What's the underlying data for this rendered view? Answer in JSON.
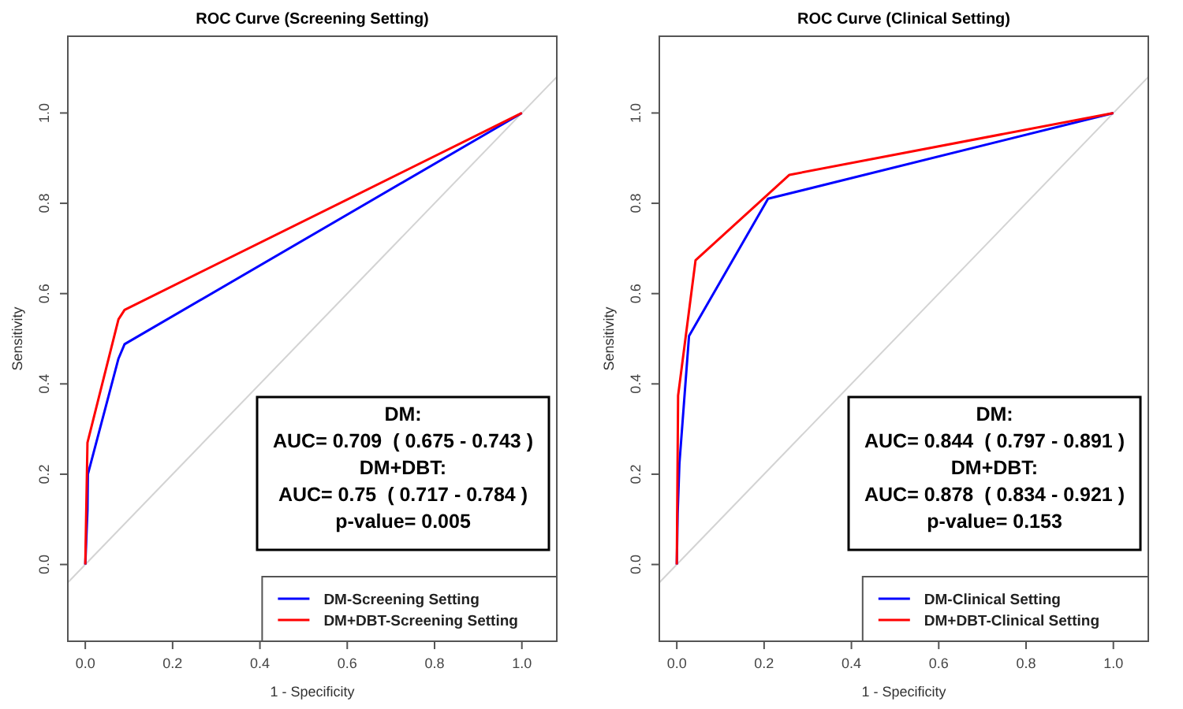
{
  "chart_data": [
    {
      "type": "line",
      "title": "ROC Curve (Screening Setting)",
      "xlabel": "1 - Specificity",
      "ylabel": "Sensitivity",
      "xlim": [
        -0.04,
        1.08
      ],
      "ylim": [
        -0.17,
        1.17
      ],
      "xticks": [
        {
          "value": 0,
          "label": "0.0"
        },
        {
          "value": 0.2,
          "label": "0.2"
        },
        {
          "value": 0.4,
          "label": "0.4"
        },
        {
          "value": 0.6,
          "label": "0.6"
        },
        {
          "value": 0.8,
          "label": "0.8"
        },
        {
          "value": 1,
          "label": "1.0"
        }
      ],
      "yticks": [
        {
          "value": 0,
          "label": "0.0"
        },
        {
          "value": 0.2,
          "label": "0.2"
        },
        {
          "value": 0.4,
          "label": "0.4"
        },
        {
          "value": 0.6,
          "label": "0.6"
        },
        {
          "value": 0.8,
          "label": "0.8"
        },
        {
          "value": 1,
          "label": "1.0"
        }
      ],
      "series": [
        {
          "color": "#d3d3d3",
          "x": [
            -0.04,
            1.08
          ],
          "values": [
            -0.04,
            1.08
          ]
        },
        {
          "name": "DM-Screening Setting",
          "color": "#0000ff",
          "x": [
            0,
            0.005,
            0.006,
            0.076,
            0.09,
            1
          ],
          "values": [
            0,
            0.12,
            0.2,
            0.456,
            0.488,
            1
          ]
        },
        {
          "name": "DM+DBT-Screening Setting",
          "color": "#ff0000",
          "x": [
            0,
            0.005,
            0.076,
            0.09,
            1
          ],
          "values": [
            0,
            0.27,
            0.543,
            0.564,
            1
          ]
        }
      ],
      "annotations": [
        "DM:",
        "AUC= 0.709  ( 0.675 - 0.743 )",
        "DM+DBT:",
        "AUC= 0.75  ( 0.717 - 0.784 )",
        "p-value= 0.005"
      ],
      "legend": "bottom right",
      "line_style": "solid",
      "grid": false
    },
    {
      "type": "line",
      "title": "ROC Curve (Clinical Setting)",
      "xlabel": "1 - Specificity",
      "ylabel": "Sensitivity",
      "xlim": [
        -0.04,
        1.08
      ],
      "ylim": [
        -0.17,
        1.17
      ],
      "xticks": [
        {
          "value": 0,
          "label": "0.0"
        },
        {
          "value": 0.2,
          "label": "0.2"
        },
        {
          "value": 0.4,
          "label": "0.4"
        },
        {
          "value": 0.6,
          "label": "0.6"
        },
        {
          "value": 0.8,
          "label": "0.8"
        },
        {
          "value": 1,
          "label": "1.0"
        }
      ],
      "yticks": [
        {
          "value": 0,
          "label": "0.0"
        },
        {
          "value": 0.2,
          "label": "0.2"
        },
        {
          "value": 0.4,
          "label": "0.4"
        },
        {
          "value": 0.6,
          "label": "0.6"
        },
        {
          "value": 0.8,
          "label": "0.8"
        },
        {
          "value": 1,
          "label": "1.0"
        }
      ],
      "series": [
        {
          "color": "#d3d3d3",
          "x": [
            -0.04,
            1.08
          ],
          "values": [
            -0.04,
            1.08
          ]
        },
        {
          "name": "DM-Clinical Setting",
          "color": "#0000ff",
          "x": [
            0,
            0.002,
            0.006,
            0.028,
            0.209,
            1
          ],
          "values": [
            0,
            0.113,
            0.223,
            0.506,
            0.81,
            1
          ]
        },
        {
          "name": "DM+DBT-Clinical Setting",
          "color": "#ff0000",
          "x": [
            0,
            0.003,
            0.043,
            0.258,
            1
          ],
          "values": [
            0,
            0.374,
            0.674,
            0.863,
            1
          ]
        }
      ],
      "annotations": [
        "DM:",
        "AUC= 0.844  ( 0.797 - 0.891 )",
        "DM+DBT:",
        "AUC= 0.878  ( 0.834 - 0.921 )",
        "p-value= 0.153"
      ],
      "legend": "bottom right",
      "line_style": "solid",
      "grid": false
    }
  ]
}
